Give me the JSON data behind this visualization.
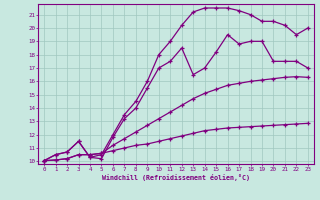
{
  "background_color": "#c8e8e0",
  "line_color": "#800080",
  "grid_color": "#a0c8c0",
  "xlabel": "Windchill (Refroidissement éolien,°C)",
  "xlabel_color": "#800080",
  "tick_color": "#800080",
  "xlim": [
    -0.5,
    23.5
  ],
  "ylim": [
    9.8,
    21.8
  ],
  "xticks": [
    0,
    1,
    2,
    3,
    4,
    5,
    6,
    7,
    8,
    9,
    10,
    11,
    12,
    13,
    14,
    15,
    16,
    17,
    18,
    19,
    20,
    21,
    22,
    23
  ],
  "yticks": [
    10,
    11,
    12,
    13,
    14,
    15,
    16,
    17,
    18,
    19,
    20,
    21
  ],
  "series": [
    {
      "x": [
        0,
        1,
        2,
        3,
        4,
        5,
        6,
        7,
        8,
        9,
        10,
        11,
        12,
        13,
        14,
        15,
        16,
        17,
        18,
        19,
        20,
        21,
        22,
        23
      ],
      "y": [
        10.05,
        10.1,
        10.2,
        10.5,
        10.5,
        10.6,
        10.8,
        11.0,
        11.2,
        11.3,
        11.5,
        11.7,
        11.9,
        12.1,
        12.3,
        12.4,
        12.5,
        12.55,
        12.6,
        12.65,
        12.7,
        12.75,
        12.8,
        12.85
      ]
    },
    {
      "x": [
        0,
        1,
        2,
        3,
        4,
        5,
        6,
        7,
        8,
        9,
        10,
        11,
        12,
        13,
        14,
        15,
        16,
        17,
        18,
        19,
        20,
        21,
        22,
        23
      ],
      "y": [
        10.05,
        10.1,
        10.2,
        10.5,
        10.5,
        10.6,
        11.2,
        11.7,
        12.2,
        12.7,
        13.2,
        13.7,
        14.2,
        14.7,
        15.1,
        15.4,
        15.7,
        15.85,
        16.0,
        16.1,
        16.2,
        16.3,
        16.35,
        16.3
      ]
    },
    {
      "x": [
        0,
        1,
        2,
        3,
        4,
        5,
        6,
        7,
        8,
        9,
        10,
        11,
        12,
        13,
        14,
        15,
        16,
        17,
        18,
        19,
        20,
        21,
        22,
        23
      ],
      "y": [
        10.05,
        10.5,
        10.7,
        11.5,
        10.3,
        10.2,
        11.8,
        13.2,
        14.0,
        15.5,
        17.0,
        17.5,
        18.5,
        16.5,
        17.0,
        18.2,
        19.5,
        18.8,
        19.0,
        19.0,
        17.5,
        17.5,
        17.5,
        17.0
      ]
    },
    {
      "x": [
        0,
        1,
        2,
        3,
        4,
        5,
        6,
        7,
        8,
        9,
        10,
        11,
        12,
        13,
        14,
        15,
        16,
        17,
        18,
        19,
        20,
        21,
        22,
        23
      ],
      "y": [
        10.05,
        10.5,
        10.7,
        11.5,
        10.3,
        10.5,
        12.0,
        13.5,
        14.5,
        16.0,
        18.0,
        19.0,
        20.2,
        21.2,
        21.5,
        21.5,
        21.5,
        21.3,
        21.0,
        20.5,
        20.5,
        20.2,
        19.5,
        20.0
      ]
    }
  ]
}
